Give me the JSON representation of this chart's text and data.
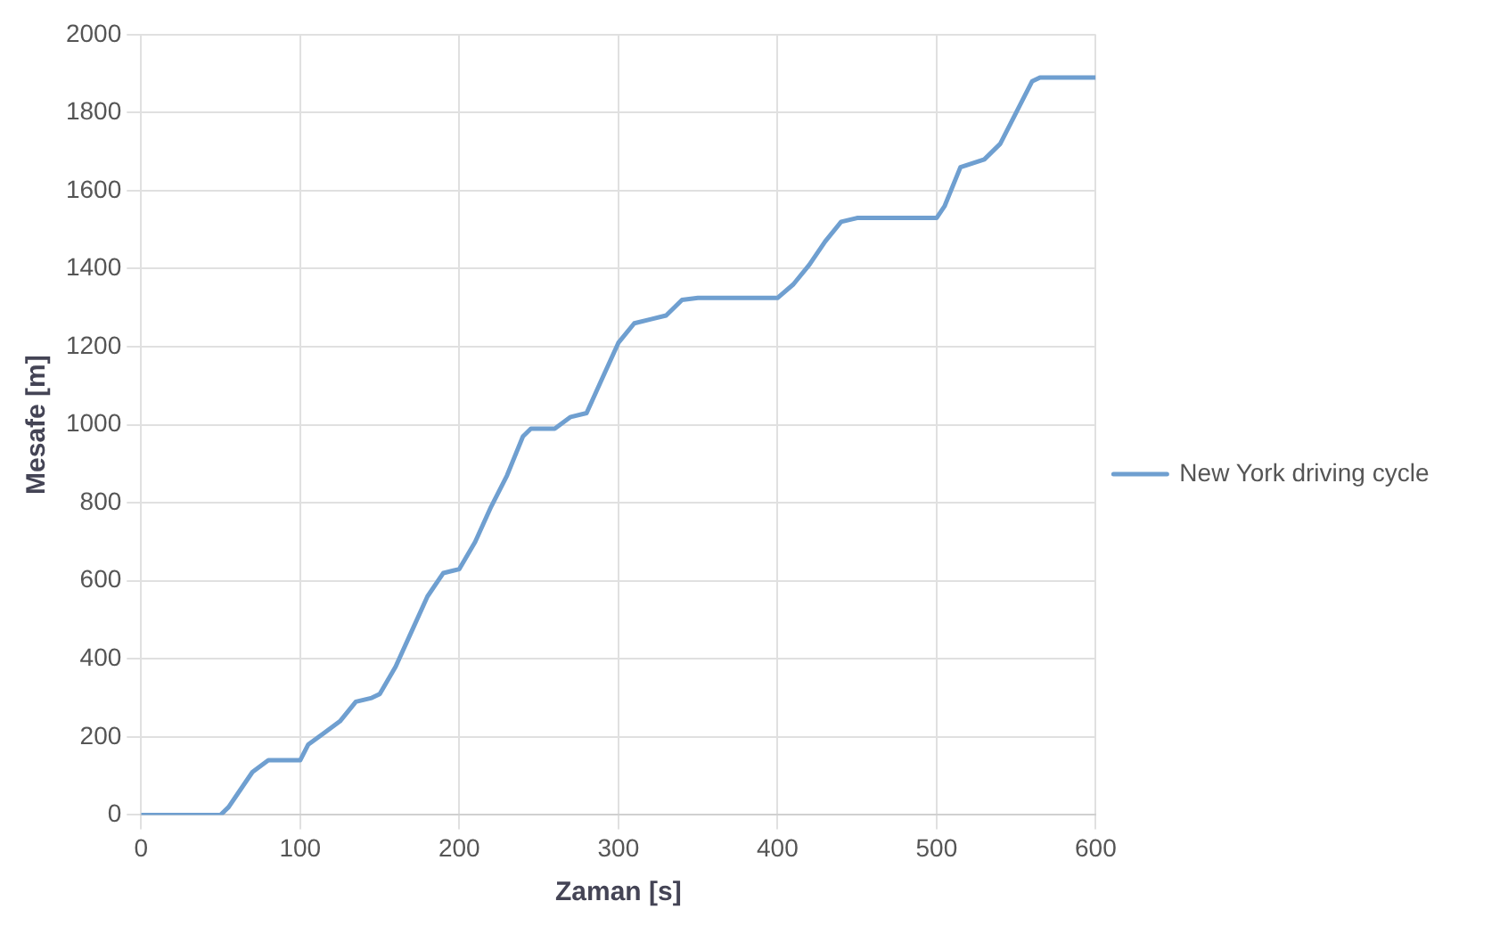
{
  "chart_data": {
    "type": "line",
    "xlabel": "Zaman [s]",
    "ylabel": "Mesafe [m]",
    "x": [
      0,
      50,
      55,
      60,
      70,
      80,
      95,
      100,
      105,
      115,
      125,
      135,
      145,
      150,
      160,
      170,
      180,
      190,
      200,
      210,
      220,
      230,
      240,
      245,
      260,
      270,
      280,
      290,
      300,
      310,
      320,
      330,
      340,
      350,
      400,
      410,
      420,
      430,
      440,
      450,
      500,
      505,
      515,
      530,
      540,
      550,
      560,
      565,
      600
    ],
    "series": [
      {
        "name": "New York driving cycle",
        "color": "#6f9fd0",
        "values": [
          0,
          0,
          20,
          50,
          110,
          140,
          140,
          140,
          180,
          210,
          240,
          290,
          300,
          310,
          380,
          470,
          560,
          620,
          630,
          700,
          790,
          870,
          970,
          990,
          990,
          1020,
          1030,
          1120,
          1210,
          1260,
          1270,
          1280,
          1320,
          1325,
          1325,
          1360,
          1410,
          1470,
          1520,
          1530,
          1530,
          1560,
          1660,
          1680,
          1720,
          1800,
          1880,
          1890,
          1890
        ]
      }
    ],
    "xlim": [
      0,
      600
    ],
    "xticks": [
      0,
      100,
      200,
      300,
      400,
      500,
      600
    ],
    "ylim": [
      0,
      2000
    ],
    "yticks": [
      0,
      200,
      400,
      600,
      800,
      1000,
      1200,
      1400,
      1600,
      1800,
      2000
    ],
    "grid": true,
    "legend": "right",
    "marker": "none",
    "line_style": "solid"
  }
}
